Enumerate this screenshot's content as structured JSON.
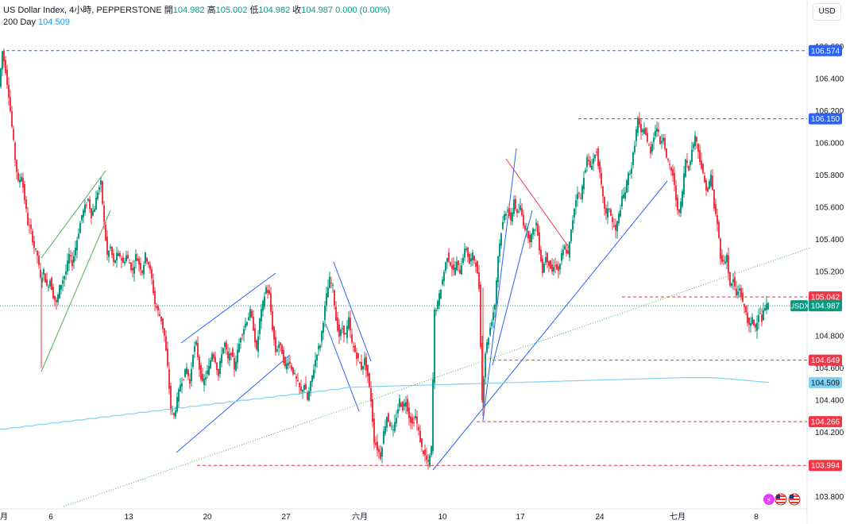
{
  "legend": {
    "symbol": "US Dollar Index, 4小時, PEPPERSTONE",
    "open_label": "開",
    "open": "104.982",
    "high_label": "高",
    "high": "105.002",
    "low_label": "低",
    "low": "104.982",
    "close_label": "收",
    "close": "104.987",
    "change": "0.000 (0.00%)",
    "ma_label": "200 Day",
    "ma_value": "104.509"
  },
  "currency": "USD",
  "colors": {
    "up": "#089981",
    "down": "#f23645",
    "ma": "#7fd3f0",
    "trend_blue": "#2962ff",
    "trend_green": "#4caf50",
    "trend_red": "#f23645",
    "level_blue": "#2962ff",
    "level_red": "#f23645",
    "dotted_green": "#4caf50"
  },
  "chart_data": {
    "type": "candlestick",
    "y_range": [
      103.8,
      106.65
    ],
    "y_ticks": [
      "103.800",
      "104.200",
      "104.400",
      "104.600",
      "104.800",
      "105.200",
      "105.400",
      "105.600",
      "105.800",
      "106.000",
      "106.200",
      "106.400",
      "106.600"
    ],
    "x_ticks": [
      "月",
      "6",
      "13",
      "20",
      "27",
      "六月",
      "10",
      "17",
      "24",
      "七月",
      "8"
    ],
    "price_levels": [
      {
        "label": "106.574",
        "value": 106.574,
        "color": "#2962ff"
      },
      {
        "label": "106.150",
        "value": 106.15,
        "color": "#2962ff"
      },
      {
        "label": "105.042",
        "value": 105.042,
        "color": "#f23645"
      },
      {
        "label": "104.649",
        "value": 104.649,
        "color": "#f23645"
      },
      {
        "label": "104.266",
        "value": 104.266,
        "color": "#f23645"
      },
      {
        "label": "103.994",
        "value": 103.994,
        "color": "#f23645"
      }
    ],
    "current_price": {
      "label": "104.987",
      "value": 104.987,
      "symbol": "USDX"
    },
    "ma_price": {
      "label": "104.509",
      "value": 104.509
    },
    "path": [
      [
        0,
        106.35
      ],
      [
        4,
        106.57
      ],
      [
        8,
        106.45
      ],
      [
        12,
        106.3
      ],
      [
        16,
        106.1
      ],
      [
        20,
        105.9
      ],
      [
        24,
        105.75
      ],
      [
        28,
        105.8
      ],
      [
        32,
        105.65
      ],
      [
        36,
        105.5
      ],
      [
        40,
        105.45
      ],
      [
        44,
        105.35
      ],
      [
        48,
        105.3
      ],
      [
        52,
        105.15
      ],
      [
        56,
        105.2
      ],
      [
        60,
        105.1
      ],
      [
        64,
        105.15
      ],
      [
        68,
        105.05
      ],
      [
        72,
        105.0
      ],
      [
        76,
        105.1
      ],
      [
        80,
        105.15
      ],
      [
        84,
        105.2
      ],
      [
        88,
        105.3
      ],
      [
        92,
        105.25
      ],
      [
        96,
        105.35
      ],
      [
        100,
        105.45
      ],
      [
        104,
        105.55
      ],
      [
        108,
        105.6
      ],
      [
        112,
        105.65
      ],
      [
        116,
        105.55
      ],
      [
        120,
        105.6
      ],
      [
        124,
        105.7
      ],
      [
        128,
        105.75
      ],
      [
        132,
        105.5
      ],
      [
        136,
        105.3
      ],
      [
        140,
        105.35
      ],
      [
        144,
        105.25
      ],
      [
        148,
        105.3
      ],
      [
        152,
        105.3
      ],
      [
        156,
        105.25
      ],
      [
        160,
        105.3
      ],
      [
        164,
        105.25
      ],
      [
        168,
        105.2
      ],
      [
        172,
        105.3
      ],
      [
        176,
        105.25
      ],
      [
        180,
        105.2
      ],
      [
        184,
        105.3
      ],
      [
        188,
        105.25
      ],
      [
        192,
        105.15
      ],
      [
        196,
        105.0
      ],
      [
        200,
        104.95
      ],
      [
        204,
        104.9
      ],
      [
        208,
        104.8
      ],
      [
        212,
        104.6
      ],
      [
        216,
        104.35
      ],
      [
        220,
        104.3
      ],
      [
        224,
        104.4
      ],
      [
        228,
        104.5
      ],
      [
        232,
        104.55
      ],
      [
        236,
        104.6
      ],
      [
        240,
        104.5
      ],
      [
        244,
        104.7
      ],
      [
        248,
        104.75
      ],
      [
        252,
        104.6
      ],
      [
        256,
        104.5
      ],
      [
        260,
        104.55
      ],
      [
        264,
        104.6
      ],
      [
        268,
        104.7
      ],
      [
        272,
        104.65
      ],
      [
        276,
        104.55
      ],
      [
        280,
        104.7
      ],
      [
        284,
        104.75
      ],
      [
        288,
        104.65
      ],
      [
        292,
        104.7
      ],
      [
        296,
        104.6
      ],
      [
        300,
        104.7
      ],
      [
        304,
        104.8
      ],
      [
        308,
        104.85
      ],
      [
        312,
        104.9
      ],
      [
        316,
        104.95
      ],
      [
        320,
        104.85
      ],
      [
        324,
        104.7
      ],
      [
        328,
        104.9
      ],
      [
        332,
        105.0
      ],
      [
        336,
        105.1
      ],
      [
        340,
        105.05
      ],
      [
        344,
        104.85
      ],
      [
        348,
        104.7
      ],
      [
        352,
        104.75
      ],
      [
        356,
        104.7
      ],
      [
        360,
        104.6
      ],
      [
        364,
        104.65
      ],
      [
        368,
        104.6
      ],
      [
        372,
        104.55
      ],
      [
        376,
        104.5
      ],
      [
        380,
        104.45
      ],
      [
        384,
        104.5
      ],
      [
        388,
        104.4
      ],
      [
        392,
        104.5
      ],
      [
        396,
        104.6
      ],
      [
        400,
        104.7
      ],
      [
        404,
        104.75
      ],
      [
        408,
        104.9
      ],
      [
        412,
        105.05
      ],
      [
        416,
        105.15
      ],
      [
        420,
        105.1
      ],
      [
        424,
        104.9
      ],
      [
        428,
        104.8
      ],
      [
        432,
        104.85
      ],
      [
        436,
        104.8
      ],
      [
        440,
        104.9
      ],
      [
        444,
        104.75
      ],
      [
        448,
        104.7
      ],
      [
        452,
        104.65
      ],
      [
        456,
        104.6
      ],
      [
        460,
        104.65
      ],
      [
        464,
        104.55
      ],
      [
        468,
        104.4
      ],
      [
        472,
        104.15
      ],
      [
        476,
        104.1
      ],
      [
        480,
        104.05
      ],
      [
        484,
        104.2
      ],
      [
        488,
        104.3
      ],
      [
        492,
        104.25
      ],
      [
        496,
        104.2
      ],
      [
        500,
        104.3
      ],
      [
        504,
        104.4
      ],
      [
        508,
        104.35
      ],
      [
        512,
        104.4
      ],
      [
        516,
        104.3
      ],
      [
        520,
        104.25
      ],
      [
        524,
        104.3
      ],
      [
        528,
        104.2
      ],
      [
        532,
        104.1
      ],
      [
        536,
        104.05
      ],
      [
        540,
        104.0
      ],
      [
        544,
        104.1
      ],
      [
        548,
        104.95
      ],
      [
        552,
        105.0
      ],
      [
        556,
        105.1
      ],
      [
        560,
        105.2
      ],
      [
        564,
        105.3
      ],
      [
        568,
        105.25
      ],
      [
        572,
        105.2
      ],
      [
        576,
        105.25
      ],
      [
        580,
        105.2
      ],
      [
        584,
        105.3
      ],
      [
        588,
        105.35
      ],
      [
        592,
        105.25
      ],
      [
        596,
        105.3
      ],
      [
        600,
        105.25
      ],
      [
        604,
        105.1
      ],
      [
        608,
        104.4
      ],
      [
        612,
        104.7
      ],
      [
        616,
        104.8
      ],
      [
        620,
        104.9
      ],
      [
        624,
        105.0
      ],
      [
        628,
        105.3
      ],
      [
        632,
        105.45
      ],
      [
        636,
        105.55
      ],
      [
        640,
        105.6
      ],
      [
        644,
        105.5
      ],
      [
        648,
        105.65
      ],
      [
        652,
        105.55
      ],
      [
        656,
        105.6
      ],
      [
        660,
        105.5
      ],
      [
        664,
        105.45
      ],
      [
        668,
        105.4
      ],
      [
        672,
        105.45
      ],
      [
        676,
        105.5
      ],
      [
        680,
        105.35
      ],
      [
        684,
        105.2
      ],
      [
        688,
        105.3
      ],
      [
        692,
        105.25
      ],
      [
        696,
        105.2
      ],
      [
        700,
        105.25
      ],
      [
        704,
        105.2
      ],
      [
        708,
        105.3
      ],
      [
        712,
        105.35
      ],
      [
        716,
        105.3
      ],
      [
        720,
        105.45
      ],
      [
        724,
        105.6
      ],
      [
        728,
        105.7
      ],
      [
        732,
        105.65
      ],
      [
        736,
        105.8
      ],
      [
        740,
        105.9
      ],
      [
        744,
        105.85
      ],
      [
        748,
        105.9
      ],
      [
        752,
        105.95
      ],
      [
        756,
        105.8
      ],
      [
        760,
        105.65
      ],
      [
        764,
        105.55
      ],
      [
        768,
        105.6
      ],
      [
        772,
        105.5
      ],
      [
        776,
        105.45
      ],
      [
        780,
        105.55
      ],
      [
        784,
        105.65
      ],
      [
        788,
        105.7
      ],
      [
        792,
        105.8
      ],
      [
        796,
        105.85
      ],
      [
        800,
        106.0
      ],
      [
        804,
        106.15
      ],
      [
        808,
        106.05
      ],
      [
        812,
        106.1
      ],
      [
        816,
        106.0
      ],
      [
        820,
        105.95
      ],
      [
        824,
        106.05
      ],
      [
        828,
        106.1
      ],
      [
        832,
        106.0
      ],
      [
        836,
        106.05
      ],
      [
        840,
        105.9
      ],
      [
        844,
        105.85
      ],
      [
        848,
        105.8
      ],
      [
        852,
        105.65
      ],
      [
        856,
        105.55
      ],
      [
        860,
        105.7
      ],
      [
        864,
        105.9
      ],
      [
        868,
        105.85
      ],
      [
        872,
        105.95
      ],
      [
        876,
        106.05
      ],
      [
        880,
        105.95
      ],
      [
        884,
        105.85
      ],
      [
        888,
        105.75
      ],
      [
        892,
        105.7
      ],
      [
        896,
        105.8
      ],
      [
        900,
        105.6
      ],
      [
        904,
        105.5
      ],
      [
        908,
        105.3
      ],
      [
        912,
        105.25
      ],
      [
        916,
        105.3
      ],
      [
        920,
        105.1
      ],
      [
        924,
        105.15
      ],
      [
        928,
        105.05
      ],
      [
        932,
        105.1
      ],
      [
        936,
        105.0
      ],
      [
        940,
        104.95
      ],
      [
        944,
        104.85
      ],
      [
        948,
        104.9
      ],
      [
        952,
        104.85
      ],
      [
        956,
        104.95
      ],
      [
        960,
        104.9
      ],
      [
        964,
        104.98
      ],
      [
        968,
        104.99
      ]
    ]
  }
}
